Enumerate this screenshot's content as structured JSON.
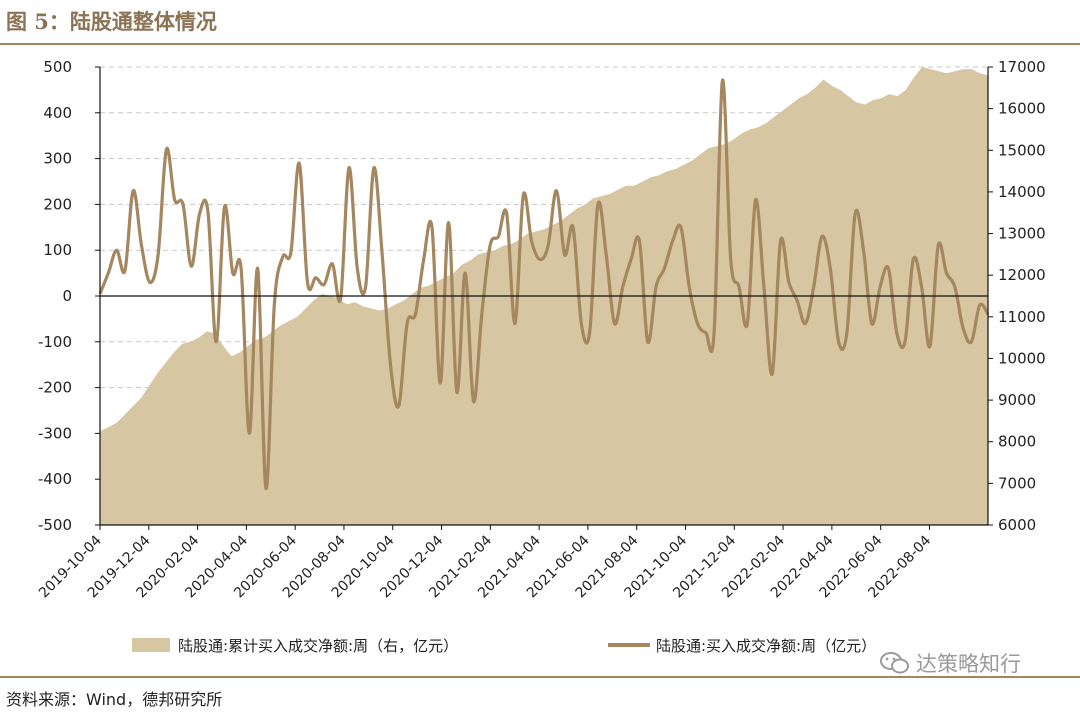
{
  "figure_title": "图 5：陆股通整体情况",
  "source": "资料来源：Wind，德邦研究所",
  "watermark": {
    "text": "达策略知行",
    "icon": "wechat-icon"
  },
  "colors": {
    "area": "#d6c6a2",
    "line": "#a4865f",
    "accent": "#8c7353",
    "grid": "#c8c8c8"
  },
  "chart_data": {
    "type": "area+line",
    "title": "",
    "legend_placement": "bottom",
    "grid": "horizontal-dashed",
    "left_axis": {
      "min": -500,
      "max": 500,
      "step": 100,
      "ticks": [
        "500",
        "400",
        "300",
        "200",
        "100",
        "0",
        "-100",
        "-200",
        "-300",
        "-400",
        "-500"
      ]
    },
    "right_axis": {
      "min": 6000,
      "max": 17000,
      "step": 1000,
      "ticks": [
        "17000",
        "16000",
        "15000",
        "14000",
        "13000",
        "12000",
        "11000",
        "10000",
        "9000",
        "8000",
        "7000",
        "6000"
      ]
    },
    "x_labels": [
      "2019-10-04",
      "2019-12-04",
      "2020-02-04",
      "2020-04-04",
      "2020-06-04",
      "2020-08-04",
      "2020-10-04",
      "2020-12-04",
      "2021-02-04",
      "2021-04-04",
      "2021-06-04",
      "2021-08-04",
      "2021-10-04",
      "2021-12-04",
      "2022-02-04",
      "2022-04-04",
      "2022-06-04",
      "2022-08-04"
    ],
    "series": [
      {
        "name": "陆股通:累计买入成交净额:周（右，亿元）",
        "type": "area",
        "axis": "right",
        "values": [
          8250,
          8350,
          8450,
          8650,
          8850,
          9050,
          9350,
          9650,
          9900,
          10150,
          10350,
          10400,
          10500,
          10650,
          10600,
          10300,
          10050,
          10150,
          10300,
          10450,
          10500,
          10650,
          10800,
          10900,
          11000,
          11200,
          11400,
          11550,
          11500,
          11450,
          11300,
          11350,
          11250,
          11200,
          11150,
          11200,
          11300,
          11400,
          11550,
          11700,
          11750,
          11850,
          11950,
          12050,
          12250,
          12350,
          12500,
          12550,
          12600,
          12700,
          12750,
          12850,
          13000,
          13050,
          13100,
          13200,
          13300,
          13450,
          13600,
          13700,
          13850,
          13900,
          13950,
          14050,
          14150,
          14150,
          14250,
          14350,
          14400,
          14500,
          14550,
          14650,
          14750,
          14900,
          15050,
          15100,
          15150,
          15250,
          15400,
          15500,
          15550,
          15650,
          15800,
          15950,
          16100,
          16250,
          16350,
          16500,
          16700,
          16550,
          16450,
          16300,
          16150,
          16100,
          16200,
          16250,
          16350,
          16300,
          16450,
          16750,
          17000,
          16950,
          16900,
          16850,
          16900,
          16950,
          16950,
          16850,
          16800
        ]
      },
      {
        "name": "陆股通:买入成交净额:周（亿元）",
        "type": "line",
        "axis": "left",
        "values": [
          5,
          50,
          100,
          55,
          230,
          110,
          30,
          90,
          320,
          210,
          200,
          65,
          180,
          185,
          -100,
          195,
          50,
          60,
          -300,
          60,
          -420,
          -20,
          85,
          95,
          290,
          30,
          40,
          25,
          70,
          -5,
          280,
          60,
          20,
          280,
          90,
          -150,
          -240,
          -60,
          -40,
          80,
          150,
          -190,
          160,
          -210,
          50,
          -230,
          -40,
          110,
          130,
          180,
          -60,
          220,
          120,
          80,
          110,
          230,
          90,
          150,
          -60,
          -80,
          200,
          90,
          -60,
          20,
          80,
          120,
          -100,
          20,
          60,
          120,
          150,
          20,
          -60,
          -80,
          -80,
          470,
          80,
          20,
          -60,
          210,
          20,
          -170,
          120,
          30,
          -10,
          -60,
          20,
          130,
          60,
          -100,
          -80,
          180,
          100,
          -60,
          20,
          60,
          -80,
          -100,
          80,
          20,
          -110,
          110,
          50,
          20,
          -70,
          -100,
          -20,
          -40
        ]
      }
    ]
  }
}
